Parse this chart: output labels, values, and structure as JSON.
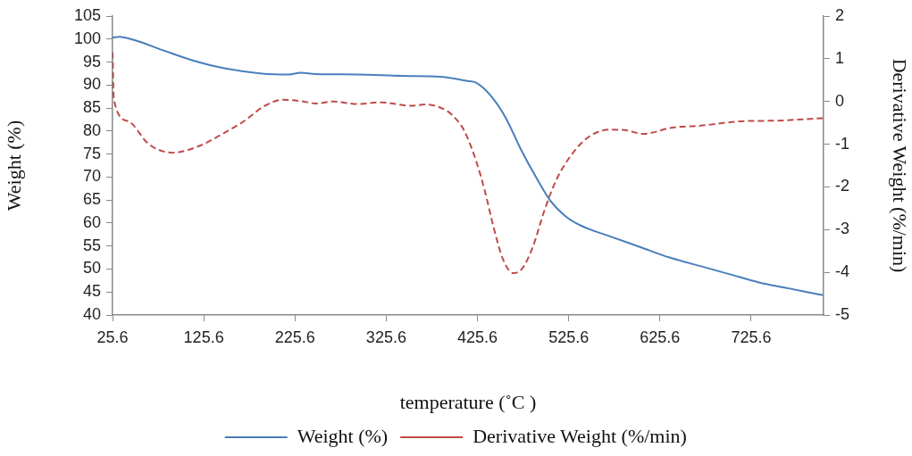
{
  "chart_data": {
    "type": "line",
    "xlabel": "temperature (˚C )",
    "ylabel": "Weight (%)",
    "y2label": "Derivative Weight (%/min)",
    "xlim": [
      25.6,
      805
    ],
    "xticks": [
      25.6,
      125.6,
      225.6,
      325.6,
      425.6,
      525.6,
      625.6,
      725.6
    ],
    "ylim": [
      40,
      105
    ],
    "yticks": [
      40,
      45,
      50,
      55,
      60,
      65,
      70,
      75,
      80,
      85,
      90,
      95,
      100,
      105
    ],
    "y2lim": [
      -5,
      2
    ],
    "y2ticks": [
      -5,
      -4,
      -3,
      -2,
      -1,
      0,
      1,
      2
    ],
    "grid": false,
    "legend": "bottom",
    "marker": "none",
    "series": [
      {
        "name": "Weight (%)",
        "color": "#4a7ebb",
        "line_style": "solid",
        "x": [
          25.6,
          32.8,
          49.1,
          81.7,
          114.3,
          146.9,
          189.3,
          218.7,
          231.8,
          248,
          293.7,
          342.6,
          385,
          414.4,
          424.1,
          440.5,
          456.8,
          473,
          489.4,
          505.7,
          522,
          538.3,
          570.9,
          603.6,
          636.2,
          668.8,
          701.4,
          734,
          766.6,
          804.1
        ],
        "values": [
          100.3,
          100.5,
          99.8,
          97.5,
          95.3,
          93.7,
          92.5,
          92.3,
          92.7,
          92.4,
          92.3,
          92,
          91.8,
          90.9,
          90.5,
          87.6,
          82.8,
          76.1,
          70.1,
          64.8,
          61.5,
          59.5,
          57.1,
          54.8,
          52.5,
          50.7,
          48.9,
          47.1,
          45.8,
          44.3
        ]
      },
      {
        "name": "Derivative Weight (%/min)",
        "color": "#be4b48",
        "line_style": "dashed",
        "axis": "y2",
        "x": [
          25.6,
          27,
          42.5,
          65.4,
          91.5,
          120.9,
          146.9,
          169.7,
          192.6,
          212.2,
          235,
          248,
          267.6,
          293.7,
          319.8,
          352.4,
          368.7,
          391.5,
          398,
          411,
          424.1,
          433.9,
          443.7,
          453.5,
          464.9,
          474.7,
          486.2,
          499.2,
          512.2,
          528.6,
          548.1,
          570.9,
          587.3,
          606.8,
          639.4,
          668.8,
          717.7,
          750.4,
          804.1
        ],
        "values": [
          1.15,
          0.05,
          -0.46,
          -1,
          -1.2,
          -1.04,
          -0.75,
          -0.46,
          -0.1,
          0.04,
          0,
          -0.05,
          0,
          -0.06,
          -0.02,
          -0.1,
          -0.07,
          -0.21,
          -0.32,
          -0.68,
          -1.39,
          -2.11,
          -2.98,
          -3.69,
          -4.02,
          -3.91,
          -3.41,
          -2.54,
          -1.83,
          -1.25,
          -0.82,
          -0.66,
          -0.67,
          -0.76,
          -0.61,
          -0.57,
          -0.46,
          -0.45,
          -0.39
        ]
      }
    ]
  }
}
